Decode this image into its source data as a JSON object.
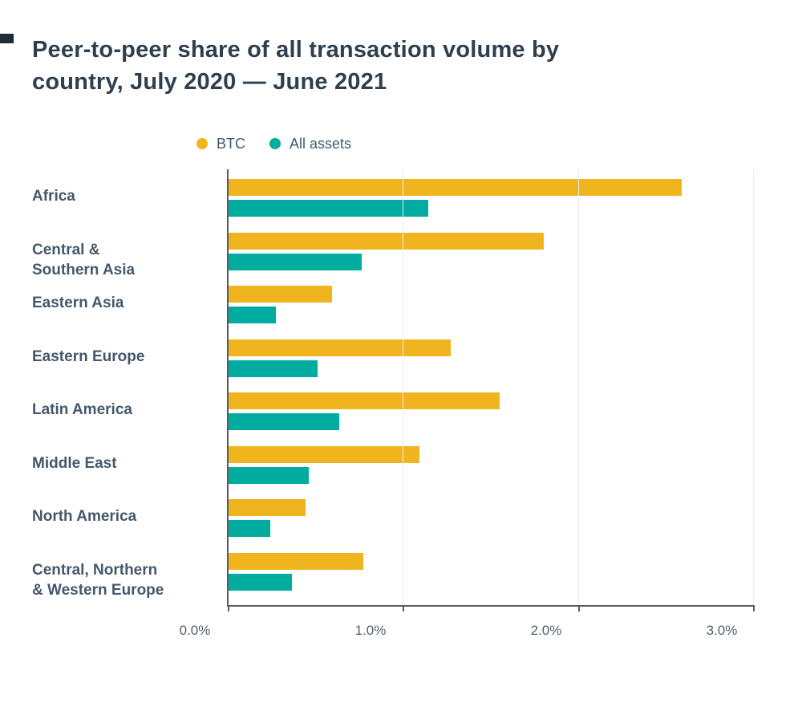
{
  "title": "Peer-to-peer share of all transaction volume by\ncountry, July 2020 — June 2021",
  "chart_data": {
    "type": "bar",
    "orientation": "horizontal",
    "title": "Peer-to-peer share of all transaction volume by\ncountry, July 2020 — June 2021",
    "categories": [
      "Africa",
      "Central &\nSouthern Asia",
      "Eastern Asia",
      "Eastern Europe",
      "Latin America",
      "Middle East",
      "North America",
      "Central, Northern\n& Western Europe"
    ],
    "series": [
      {
        "name": "BTC",
        "color": "#F0B41E",
        "values": [
          2.59,
          1.8,
          0.59,
          1.27,
          1.55,
          1.09,
          0.44,
          0.77
        ]
      },
      {
        "name": "All assets",
        "color": "#00ACA0",
        "values": [
          1.14,
          0.76,
          0.27,
          0.51,
          0.63,
          0.46,
          0.24,
          0.36
        ]
      }
    ],
    "xlabel": "",
    "ylabel": "",
    "xlim": [
      0,
      3.0
    ],
    "x_ticks": [
      "0.0%",
      "1.0%",
      "2.0%",
      "3.0%"
    ],
    "grid": true,
    "legend_position": "top"
  },
  "colors": {
    "title_text": "#2e3f4e",
    "category_text": "#45586b",
    "axis_line": "#555e66",
    "gridline": "#ededed"
  }
}
